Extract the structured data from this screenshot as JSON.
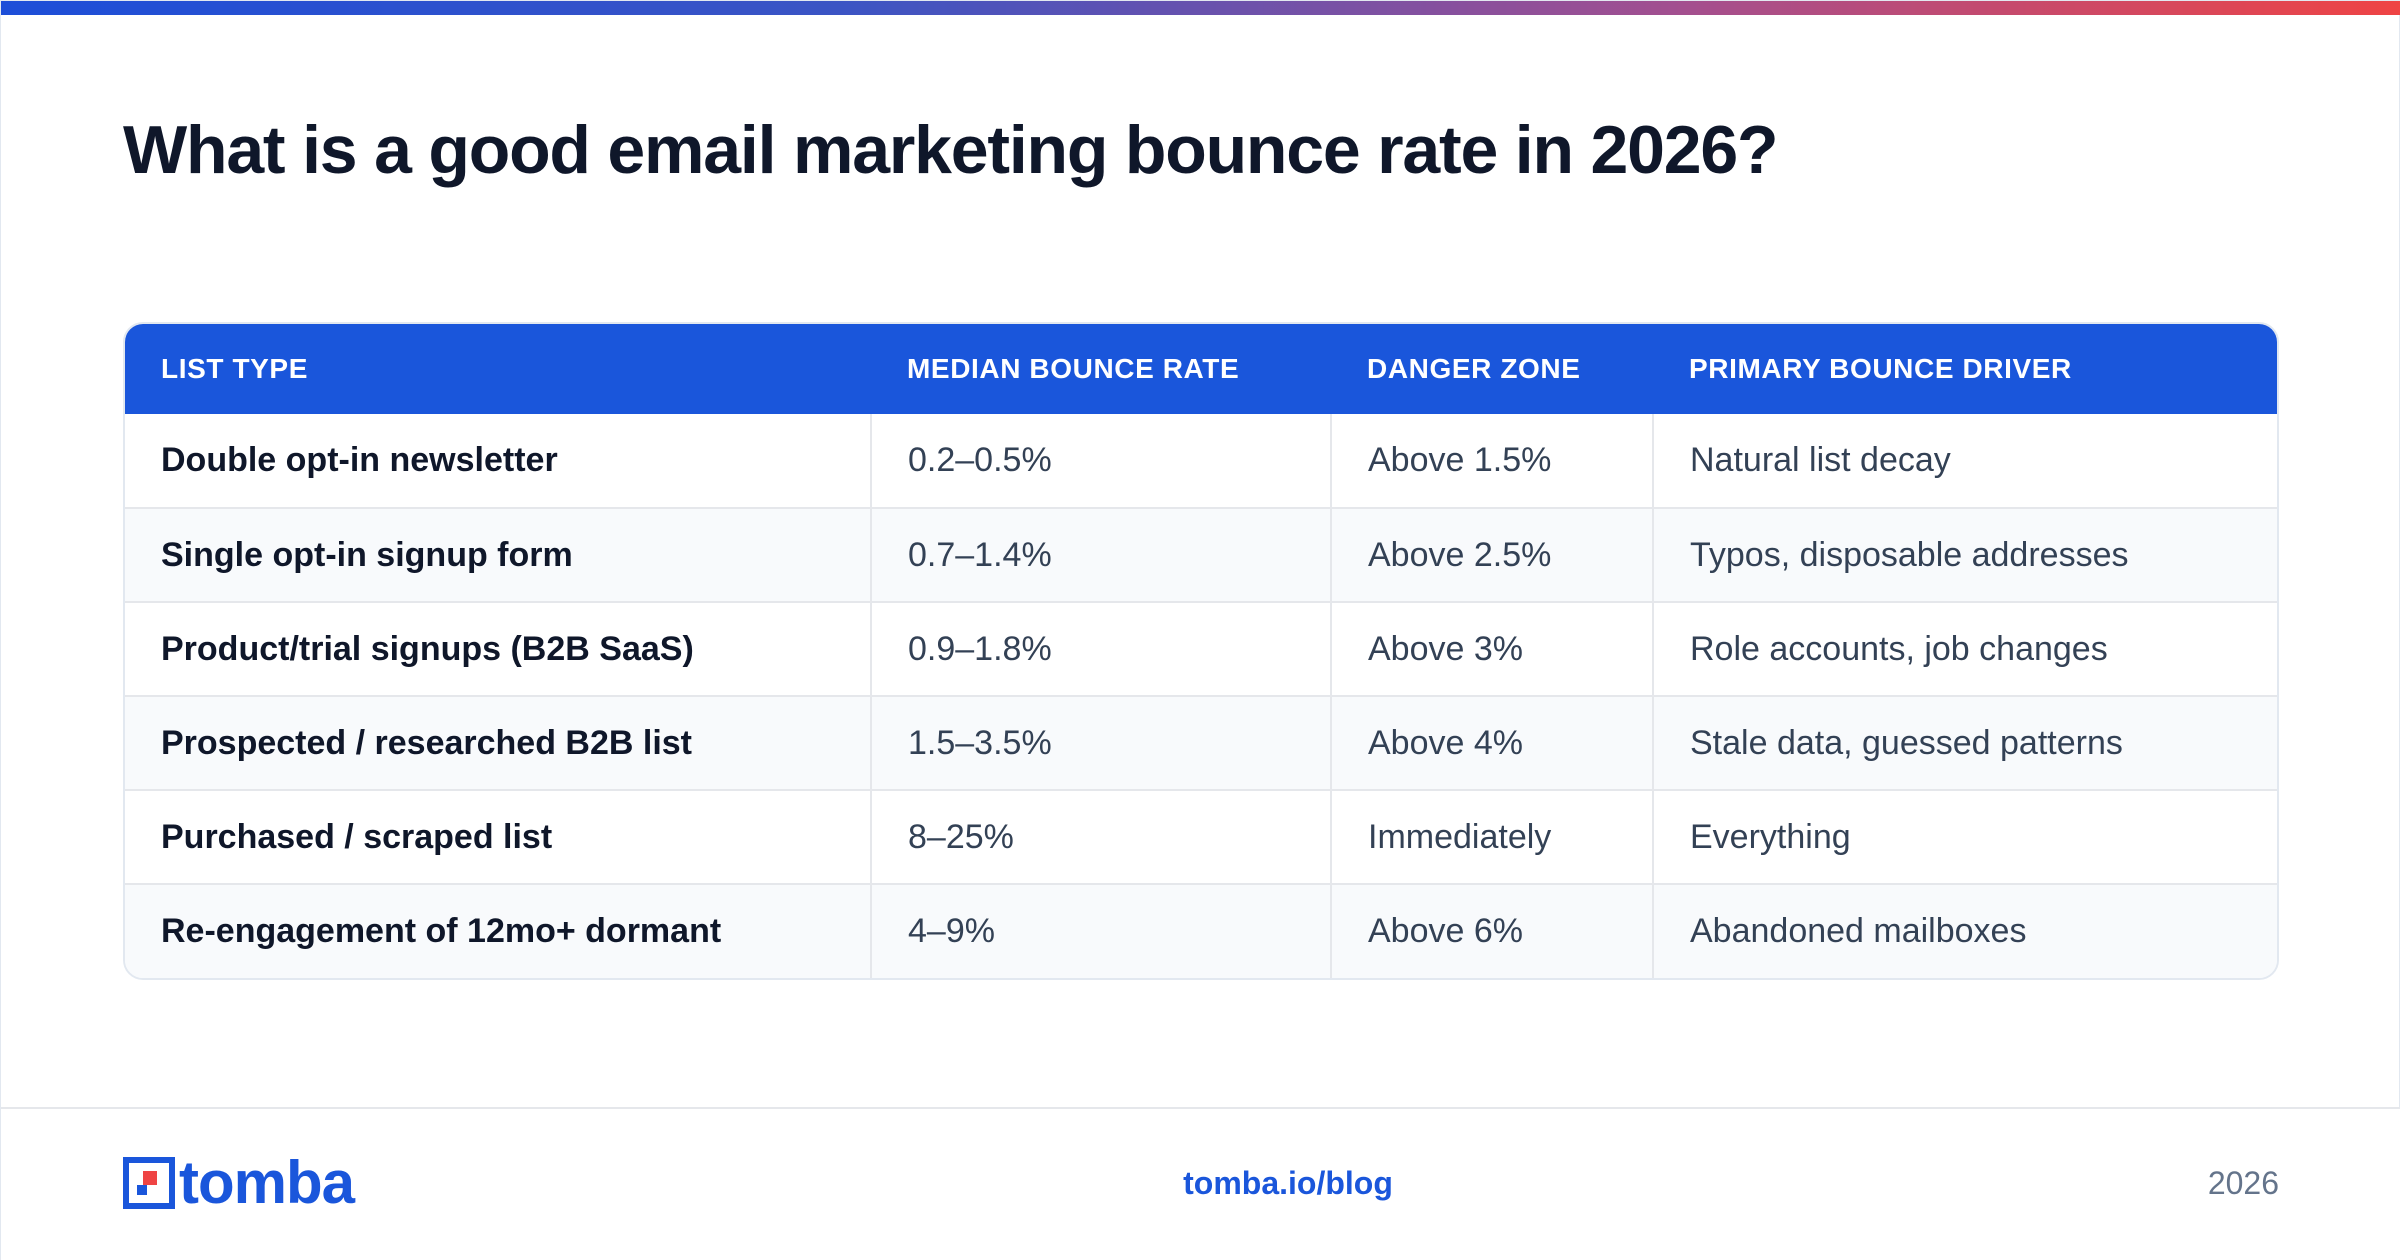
{
  "title": "What is a good email marketing bounce rate in 2026?",
  "colors": {
    "accent": "#1a56db",
    "logo_red": "#ef4444",
    "gradient_start": "#1d4ed8",
    "gradient_end": "#ef4444"
  },
  "table": {
    "headers": [
      "LIST TYPE",
      "MEDIAN BOUNCE RATE",
      "DANGER ZONE",
      "PRIMARY BOUNCE DRIVER"
    ],
    "rows": [
      [
        "Double opt-in newsletter",
        "0.2–0.5%",
        "Above 1.5%",
        "Natural list decay"
      ],
      [
        "Single opt-in signup form",
        "0.7–1.4%",
        "Above 2.5%",
        "Typos, disposable addresses"
      ],
      [
        "Product/trial signups (B2B SaaS)",
        "0.9–1.8%",
        "Above 3%",
        "Role accounts, job changes"
      ],
      [
        "Prospected / researched B2B list",
        "1.5–3.5%",
        "Above 4%",
        "Stale data, guessed patterns"
      ],
      [
        "Purchased / scraped list",
        "8–25%",
        "Immediately",
        "Everything"
      ],
      [
        "Re-engagement of 12mo+ dormant",
        "4–9%",
        "Above 6%",
        "Abandoned mailboxes"
      ]
    ]
  },
  "footer": {
    "logo_text": "tomba",
    "logo_icon": "tomba-logo-icon",
    "link": "tomba.io/blog",
    "year": "2026"
  }
}
